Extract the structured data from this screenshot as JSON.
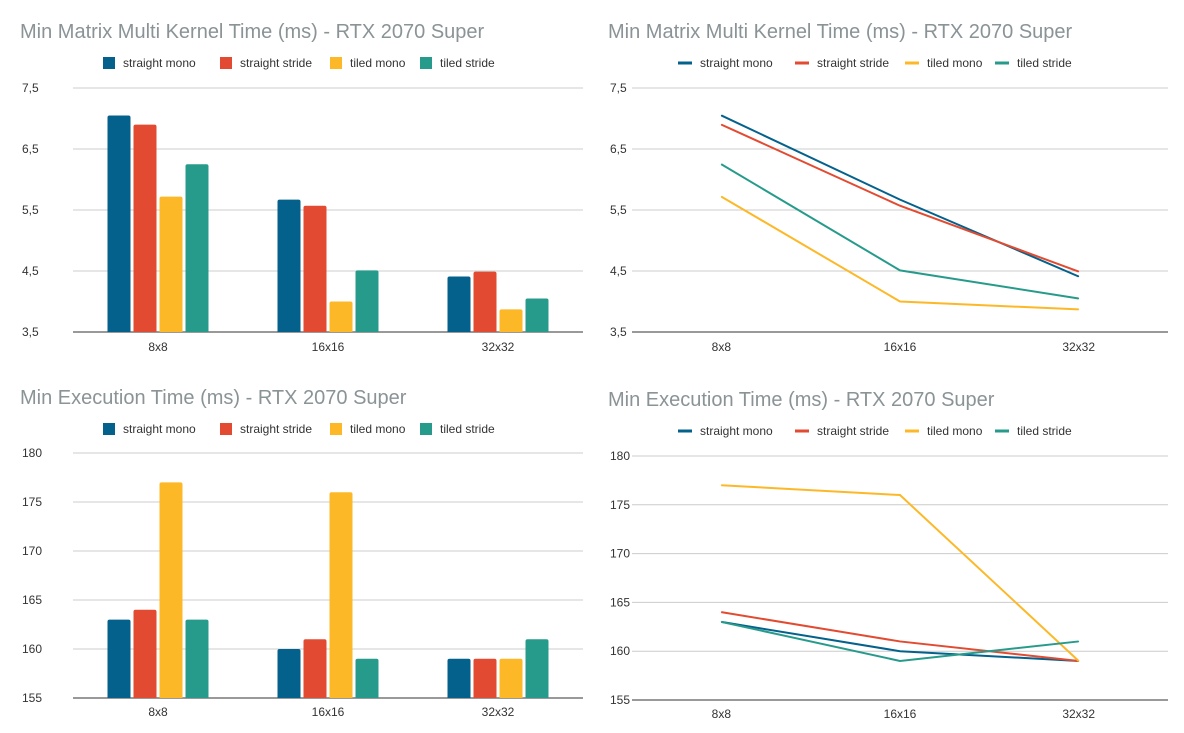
{
  "colors": {
    "straight_mono": "#03618c",
    "straight_stride": "#e24b31",
    "tiled_mono": "#fdb827",
    "tiled_stride": "#279b8b",
    "title": "#8a9396",
    "axis_text": "#333333",
    "grid": "#cccccc"
  },
  "chart_data": [
    {
      "type": "bar",
      "title": "Min Matrix Multi Kernel Time (ms) - RTX 2070 Super",
      "categories": [
        "8x8",
        "16x16",
        "32x32"
      ],
      "series": [
        {
          "name": "straight mono",
          "values": [
            7.05,
            5.67,
            4.41
          ]
        },
        {
          "name": "straight stride",
          "values": [
            6.9,
            5.57,
            4.49
          ]
        },
        {
          "name": "tiled mono",
          "values": [
            5.72,
            4.0,
            3.87
          ]
        },
        {
          "name": "tiled stride",
          "values": [
            6.25,
            4.51,
            4.05
          ]
        }
      ],
      "ylim": [
        3.5,
        7.5
      ],
      "yticks": [
        "3,5",
        "4,5",
        "5,5",
        "6,5",
        "7,5"
      ],
      "grid": true,
      "legend": "top"
    },
    {
      "type": "line",
      "title": "Min Matrix Multi Kernel Time (ms) - RTX 2070 Super",
      "categories": [
        "8x8",
        "16x16",
        "32x32"
      ],
      "series": [
        {
          "name": "straight mono",
          "values": [
            7.05,
            5.67,
            4.41
          ]
        },
        {
          "name": "straight stride",
          "values": [
            6.9,
            5.57,
            4.49
          ]
        },
        {
          "name": "tiled mono",
          "values": [
            5.72,
            4.0,
            3.87
          ]
        },
        {
          "name": "tiled stride",
          "values": [
            6.25,
            4.51,
            4.05
          ]
        }
      ],
      "ylim": [
        3.5,
        7.5
      ],
      "yticks": [
        "3,5",
        "4,5",
        "5,5",
        "6,5",
        "7,5"
      ],
      "grid": true,
      "legend": "top"
    },
    {
      "type": "bar",
      "title": "Min Execution Time (ms) - RTX 2070 Super",
      "categories": [
        "8x8",
        "16x16",
        "32x32"
      ],
      "series": [
        {
          "name": "straight mono",
          "values": [
            163,
            160,
            159
          ]
        },
        {
          "name": "straight stride",
          "values": [
            164,
            161,
            159
          ]
        },
        {
          "name": "tiled mono",
          "values": [
            177,
            176,
            159
          ]
        },
        {
          "name": "tiled stride",
          "values": [
            163,
            159,
            161
          ]
        }
      ],
      "ylim": [
        155,
        180
      ],
      "yticks": [
        "155",
        "160",
        "165",
        "170",
        "175",
        "180"
      ],
      "grid": true,
      "legend": "top"
    },
    {
      "type": "line",
      "title": "Min Execution Time (ms) - RTX 2070 Super",
      "categories": [
        "8x8",
        "16x16",
        "32x32"
      ],
      "series": [
        {
          "name": "straight mono",
          "values": [
            163,
            160,
            159
          ]
        },
        {
          "name": "straight stride",
          "values": [
            164,
            161,
            159
          ]
        },
        {
          "name": "tiled mono",
          "values": [
            177,
            176,
            159
          ]
        },
        {
          "name": "tiled stride",
          "values": [
            163,
            159,
            161
          ]
        }
      ],
      "ylim": [
        155,
        180
      ],
      "yticks": [
        "155",
        "160",
        "165",
        "170",
        "175",
        "180"
      ],
      "grid": true,
      "legend": "top"
    }
  ]
}
